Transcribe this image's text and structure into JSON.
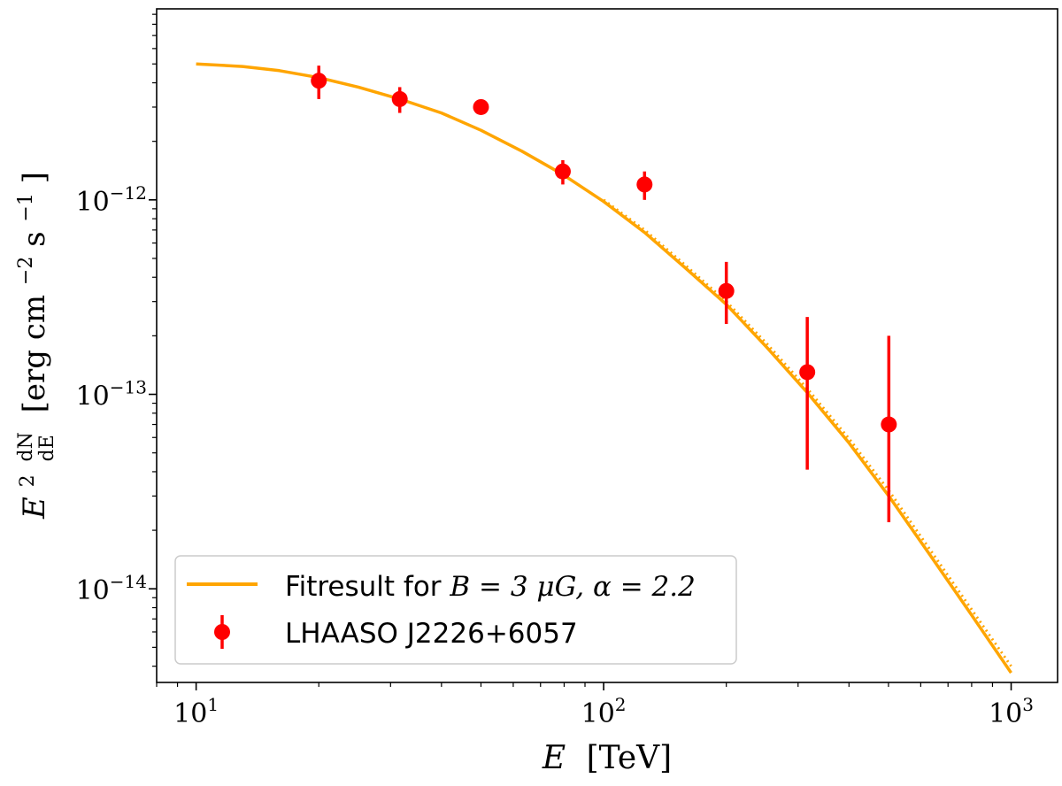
{
  "chart_data": {
    "type": "line+scatter",
    "x_scale": "log",
    "y_scale": "log",
    "xlim": [
      8,
      1300
    ],
    "ylim": [
      3.3e-15,
      9.6e-12
    ],
    "xlabel": {
      "base": "E",
      "unit": "[TeV]"
    },
    "ylabel": {
      "base": "E",
      "sup": "2",
      "frac_num": "dN",
      "frac_den": "dE",
      "unit_open": "[erg cm",
      "unit_exp1": "−2",
      "unit_mid": " s",
      "unit_exp2": "−1",
      "unit_close": "]"
    },
    "x_major_ticks": [
      {
        "value": 10,
        "base": "10",
        "exp": "1"
      },
      {
        "value": 100,
        "base": "10",
        "exp": "2"
      },
      {
        "value": 1000,
        "base": "10",
        "exp": "3"
      }
    ],
    "y_major_ticks": [
      {
        "value": 1e-14,
        "base": "10",
        "exp": "−14"
      },
      {
        "value": 1e-13,
        "base": "10",
        "exp": "−13"
      },
      {
        "value": 1e-12,
        "base": "10",
        "exp": "−12"
      }
    ],
    "series": [
      {
        "name": "Fitresult for B = 3 μG, α = 2.2",
        "kind": "line",
        "color": "#ffa500",
        "x": [
          10,
          13,
          16,
          20,
          25,
          31.6,
          40,
          50,
          63,
          79.4,
          100,
          126,
          158,
          200,
          251,
          316,
          398,
          501,
          631,
          794,
          1000
        ],
        "y": [
          5e-12,
          4.85e-12,
          4.62e-12,
          4.25e-12,
          3.8e-12,
          3.3e-12,
          2.8e-12,
          2.28e-12,
          1.78e-12,
          1.35e-12,
          9.8e-13,
          6.8e-13,
          4.5e-13,
          2.9e-13,
          1.75e-13,
          1.02e-13,
          5.7e-14,
          3e-14,
          1.5e-14,
          7.5e-15,
          3.7e-15
        ]
      },
      {
        "name": "",
        "kind": "dotted-line",
        "color": "#ffa500",
        "x": [
          100,
          126,
          158,
          200,
          251,
          316,
          398,
          501,
          631,
          794,
          1000
        ],
        "y": [
          1e-12,
          7e-13,
          4.65e-13,
          3e-13,
          1.83e-13,
          1.07e-13,
          6e-14,
          3.2e-14,
          1.6e-14,
          8e-15,
          4e-15
        ]
      },
      {
        "name": "LHAASO J2226+6057",
        "kind": "errorbar",
        "color": "#ff0000",
        "points": [
          {
            "x": 20,
            "y": 4.1e-12,
            "ylo": 3.3e-12,
            "yhi": 4.9e-12
          },
          {
            "x": 31.6,
            "y": 3.3e-12,
            "ylo": 2.8e-12,
            "yhi": 3.8e-12
          },
          {
            "x": 50,
            "y": 3e-12,
            "ylo": 2.8e-12,
            "yhi": 3.2e-12
          },
          {
            "x": 79.4,
            "y": 1.4e-12,
            "ylo": 1.2e-12,
            "yhi": 1.6e-12
          },
          {
            "x": 126,
            "y": 1.2e-12,
            "ylo": 1e-12,
            "yhi": 1.4e-12
          },
          {
            "x": 200,
            "y": 3.4e-13,
            "ylo": 2.3e-13,
            "yhi": 4.8e-13
          },
          {
            "x": 316,
            "y": 1.3e-13,
            "ylo": 4.1e-14,
            "yhi": 2.5e-13
          },
          {
            "x": 501,
            "y": 7e-14,
            "ylo": 2.2e-14,
            "yhi": 2e-13
          }
        ]
      }
    ],
    "legend": {
      "placement": "lower-left",
      "entries": [
        {
          "series": 0,
          "prefix": "Fitresult for ",
          "math": "B = 3 μG, α = 2.2"
        },
        {
          "series": 2,
          "prefix": "LHAASO J2226+6057",
          "math": ""
        }
      ]
    },
    "grid": false
  }
}
